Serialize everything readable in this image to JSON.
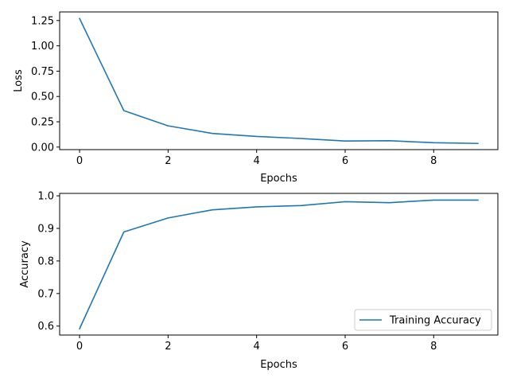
{
  "chart_data": [
    {
      "type": "line",
      "title": "",
      "xlabel": "Epochs",
      "ylabel": "Loss",
      "x": [
        0,
        1,
        2,
        3,
        4,
        5,
        6,
        7,
        8,
        9
      ],
      "xlim": [
        -0.45,
        9.45
      ],
      "ylim": [
        -0.025,
        1.335
      ],
      "xticks": [
        0,
        2,
        4,
        6,
        8
      ],
      "xtick_labels": [
        "0",
        "2",
        "4",
        "6",
        "8"
      ],
      "yticks": [
        0.0,
        0.25,
        0.5,
        0.75,
        1.0,
        1.25
      ],
      "ytick_labels": [
        "0.00",
        "0.25",
        "0.50",
        "0.75",
        "1.00",
        "1.25"
      ],
      "grid": false,
      "legend": null,
      "series": [
        {
          "name": "",
          "color": "#1f77b4",
          "values": [
            1.27,
            0.36,
            0.21,
            0.135,
            0.105,
            0.085,
            0.06,
            0.063,
            0.043,
            0.036
          ]
        }
      ]
    },
    {
      "type": "line",
      "title": "",
      "xlabel": "Epochs",
      "ylabel": "Accuracy",
      "x": [
        0,
        1,
        2,
        3,
        4,
        5,
        6,
        7,
        8,
        9
      ],
      "xlim": [
        -0.45,
        9.45
      ],
      "ylim": [
        0.5725,
        1.0075
      ],
      "xticks": [
        0,
        2,
        4,
        6,
        8
      ],
      "xtick_labels": [
        "0",
        "2",
        "4",
        "6",
        "8"
      ],
      "yticks": [
        0.6,
        0.7,
        0.8,
        0.9,
        1.0
      ],
      "ytick_labels": [
        "0.6",
        "0.7",
        "0.8",
        "0.9",
        "1.0"
      ],
      "grid": false,
      "legend": "lower right",
      "series": [
        {
          "name": "Training Accuracy",
          "color": "#1f77b4",
          "values": [
            0.592,
            0.889,
            0.932,
            0.957,
            0.966,
            0.97,
            0.982,
            0.979,
            0.987,
            0.987
          ]
        }
      ]
    }
  ]
}
